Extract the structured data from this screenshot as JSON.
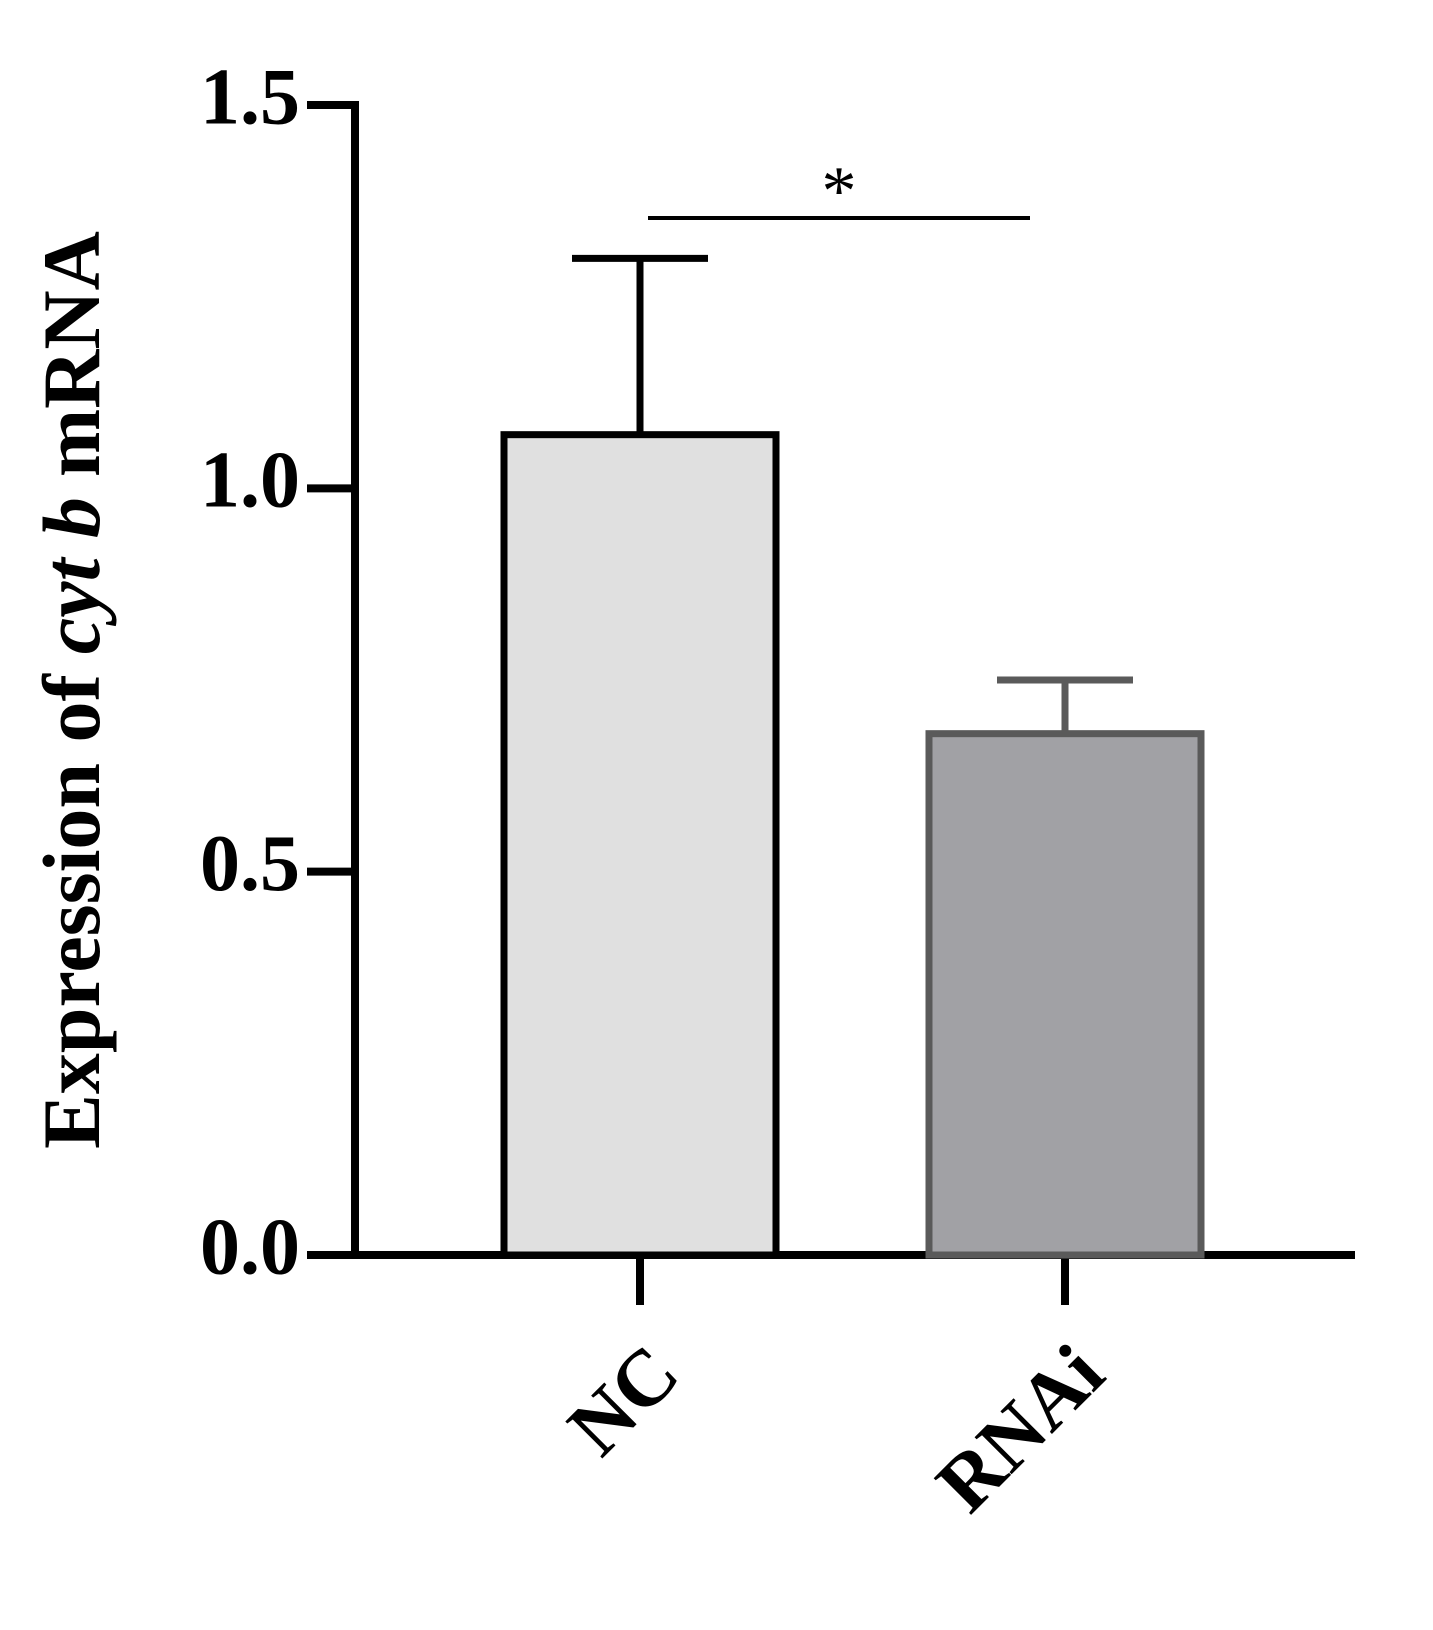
{
  "chart_data": {
    "type": "bar",
    "y_label": {
      "prefix": "Expression of",
      "italic": "cyt b",
      "suffix": "mRNA"
    },
    "categories": [
      "NC",
      "RNAi"
    ],
    "values": [
      1.07,
      0.68
    ],
    "errors": [
      0.23,
      0.07
    ],
    "colors": [
      "#e0e0e0",
      "#a1a1a5"
    ],
    "edge_colors": [
      "#000000",
      "#5a5a5a"
    ],
    "ylim": [
      0,
      1.5
    ],
    "yticks": [
      {
        "value": 0,
        "label": "0.0"
      },
      0.5,
      {
        "value": 1,
        "label": "1.0"
      },
      1.5
    ],
    "annotation": "*",
    "grid": false
  }
}
